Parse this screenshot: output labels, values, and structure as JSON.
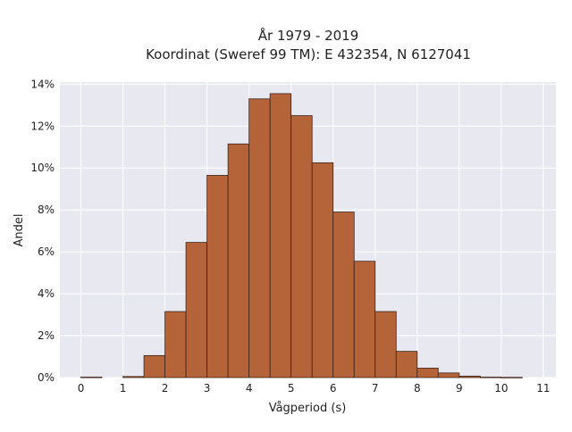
{
  "chart_data": {
    "type": "bar",
    "title_lines": [
      "År 1979 - 2019",
      "Koordinat (Sweref 99 TM): E 432354, N 6127041"
    ],
    "xlabel": "Vågperiod (s)",
    "ylabel": "Andel",
    "x_ticks": [
      "0",
      "1",
      "2",
      "3",
      "4",
      "5",
      "6",
      "7",
      "8",
      "9",
      "10",
      "11"
    ],
    "y_ticks": [
      "0%",
      "2%",
      "4%",
      "6%",
      "8%",
      "10%",
      "12%",
      "14%"
    ],
    "xlim": [
      -0.5,
      11.3
    ],
    "ylim": [
      0,
      14.1
    ],
    "bin_width": 0.5,
    "bins": [
      {
        "x0": 0.0,
        "value": 0.02
      },
      {
        "x0": 1.0,
        "value": 0.05
      },
      {
        "x0": 1.5,
        "value": 1.05
      },
      {
        "x0": 2.0,
        "value": 3.15
      },
      {
        "x0": 2.5,
        "value": 6.45
      },
      {
        "x0": 3.0,
        "value": 9.65
      },
      {
        "x0": 3.5,
        "value": 11.15
      },
      {
        "x0": 4.0,
        "value": 13.3
      },
      {
        "x0": 4.5,
        "value": 13.55
      },
      {
        "x0": 5.0,
        "value": 12.5
      },
      {
        "x0": 5.5,
        "value": 10.25
      },
      {
        "x0": 6.0,
        "value": 7.9
      },
      {
        "x0": 6.5,
        "value": 5.55
      },
      {
        "x0": 7.0,
        "value": 3.15
      },
      {
        "x0": 7.5,
        "value": 1.25
      },
      {
        "x0": 8.0,
        "value": 0.45
      },
      {
        "x0": 8.5,
        "value": 0.22
      },
      {
        "x0": 9.0,
        "value": 0.07
      },
      {
        "x0": 9.5,
        "value": 0.02
      },
      {
        "x0": 10.0,
        "value": 0.01
      }
    ],
    "grid": true,
    "colors": {
      "bar_fill": "#b5643a",
      "bar_stroke": "#3d2418",
      "plot_background": "#e8e8f1",
      "grid": "#ffffff"
    }
  }
}
